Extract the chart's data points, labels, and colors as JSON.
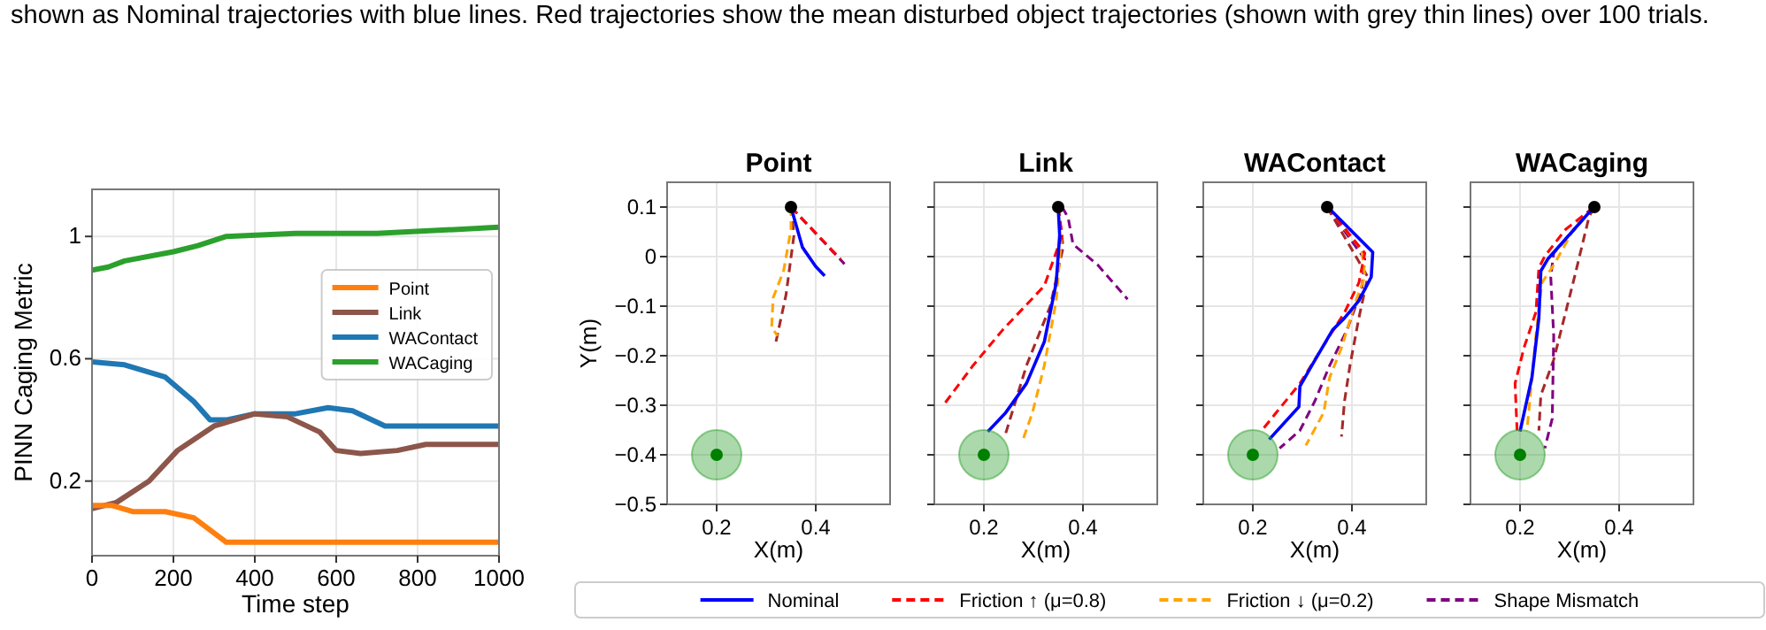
{
  "chart_data": [
    {
      "type": "line",
      "xlabel": "Time step",
      "ylabel": "PINN Caging Metric",
      "xlim": [
        0,
        1000
      ],
      "ylim": [
        -0.044,
        1.154
      ],
      "xticks": [
        0,
        200,
        400,
        600,
        800,
        1000
      ],
      "yticks": [
        0.2,
        0.6,
        1.0
      ],
      "grid": true,
      "legend": "right",
      "annotations": [
        "shown as Nominal trajectories with blue lines. Red trajectories show the mean disturbed object trajectories (shown with grey thin lines) over 100 trials."
      ],
      "series": [
        {
          "name": "Point",
          "color": "#ff7f0e",
          "x": [
            0,
            50,
            100,
            180,
            250,
            330,
            1000
          ],
          "values": [
            0.12,
            0.12,
            0.1,
            0.1,
            0.08,
            0.0,
            0.0
          ]
        },
        {
          "name": "Link",
          "color": "#8c564b",
          "x": [
            0,
            60,
            140,
            210,
            300,
            400,
            480,
            560,
            600,
            660,
            750,
            820,
            1000
          ],
          "values": [
            0.11,
            0.13,
            0.2,
            0.3,
            0.38,
            0.42,
            0.41,
            0.36,
            0.3,
            0.29,
            0.3,
            0.32,
            0.32
          ]
        },
        {
          "name": "WAContact",
          "color": "#1f77b4",
          "x": [
            0,
            80,
            180,
            250,
            290,
            330,
            400,
            500,
            580,
            640,
            720,
            1000
          ],
          "values": [
            0.59,
            0.58,
            0.54,
            0.46,
            0.4,
            0.4,
            0.42,
            0.42,
            0.44,
            0.43,
            0.38,
            0.38
          ]
        },
        {
          "name": "WACaging",
          "color": "#2ca02c",
          "x": [
            0,
            40,
            80,
            200,
            260,
            330,
            500,
            700,
            850,
            1000
          ],
          "values": [
            0.89,
            0.9,
            0.92,
            0.95,
            0.97,
            1.0,
            1.01,
            1.01,
            1.02,
            1.03
          ]
        }
      ]
    },
    {
      "type": "line",
      "title": "Point",
      "xlabel": "X(m)",
      "ylabel": "Y(m)",
      "xlim": [
        0.1,
        0.55
      ],
      "ylim": [
        -0.5,
        0.15
      ],
      "xticks": [
        0.2,
        0.4
      ],
      "yticks": [
        0.1,
        0.0,
        -0.1,
        -0.2,
        -0.3,
        -0.4,
        -0.5
      ],
      "grid": true,
      "legend": "bottom",
      "series": [
        {
          "name": "Nominal",
          "color": "#0000ff",
          "line_style": "solid",
          "x": [
            0.35,
            0.373,
            0.4,
            0.418
          ],
          "values": [
            0.1,
            0.019,
            -0.02,
            -0.039
          ]
        },
        {
          "name": "Friction ↑ (μ=0.8)",
          "color": "#ff0000",
          "line_style": "dashed",
          "x": [
            0.35,
            0.45
          ],
          "values": [
            0.1,
            -0.005
          ]
        },
        {
          "name": "Friction ↓ (μ=0.2)",
          "color": "#ffa500",
          "line_style": "dashed",
          "x": [
            0.35,
            0.35,
            0.335,
            0.314,
            0.311,
            0.323
          ],
          "values": [
            0.1,
            0.055,
            -0.029,
            -0.083,
            -0.143,
            -0.16
          ]
        },
        {
          "name": "Shape Mismatch",
          "color": "#800080",
          "line_style": "dashed",
          "x": [
            0.35,
            0.458
          ],
          "values": [
            0.1,
            -0.015
          ]
        },
        {
          "color": "#a52a2a",
          "line_style": "dashed",
          "x": [
            0.35,
            0.356,
            0.34,
            0.319
          ],
          "values": [
            0.1,
            0.043,
            -0.077,
            -0.175
          ]
        },
        {
          "type": "bubble",
          "color": "#2ca02c",
          "x": [
            0.2
          ],
          "values": [
            -0.4
          ],
          "sizes": [
            1
          ]
        },
        {
          "type": "scatter",
          "color": "#008000",
          "x": [
            0.2
          ],
          "values": [
            -0.4
          ]
        },
        {
          "type": "scatter",
          "color": "#000000",
          "x": [
            0.35
          ],
          "values": [
            0.1
          ]
        }
      ]
    },
    {
      "type": "line",
      "title": "Link",
      "xlabel": "X(m)",
      "xlim": [
        0.1,
        0.55
      ],
      "ylim": [
        -0.5,
        0.15
      ],
      "xticks": [
        0.2,
        0.4
      ],
      "yticks": [
        0.1,
        0.0,
        -0.1,
        -0.2,
        -0.3,
        -0.4,
        -0.5
      ],
      "grid": true,
      "tick_labels": "x",
      "series": [
        {
          "color": "#0000ff",
          "line_style": "solid",
          "x": [
            0.35,
            0.353,
            0.346,
            0.322,
            0.286,
            0.244,
            0.208
          ],
          "values": [
            0.1,
            0.043,
            -0.053,
            -0.172,
            -0.256,
            -0.315,
            -0.353
          ]
        },
        {
          "color": "#ff0000",
          "line_style": "dashed",
          "x": [
            0.35,
            0.358,
            0.322,
            0.238,
            0.178,
            0.122
          ],
          "values": [
            0.1,
            0.043,
            -0.059,
            -0.148,
            -0.22,
            -0.295
          ]
        },
        {
          "color": "#ffa500",
          "line_style": "dashed",
          "x": [
            0.35,
            0.356,
            0.346,
            0.322,
            0.298,
            0.277
          ],
          "values": [
            0.1,
            0.031,
            -0.089,
            -0.22,
            -0.315,
            -0.375
          ]
        },
        {
          "color": "#800080",
          "line_style": "dashed",
          "x": [
            0.358,
            0.37,
            0.38,
            0.43,
            0.49
          ],
          "values": [
            0.1,
            0.079,
            0.025,
            -0.017,
            -0.086
          ]
        },
        {
          "color": "#a52a2a",
          "line_style": "dashed",
          "x": [
            0.35,
            0.36,
            0.334,
            0.286,
            0.244
          ],
          "values": [
            0.1,
            0.019,
            -0.1,
            -0.22,
            -0.357
          ]
        },
        {
          "type": "bubble",
          "color": "#2ca02c",
          "x": [
            0.2
          ],
          "values": [
            -0.4
          ],
          "sizes": [
            1
          ]
        },
        {
          "type": "scatter",
          "color": "#008000",
          "x": [
            0.2
          ],
          "values": [
            -0.4
          ]
        },
        {
          "type": "scatter",
          "color": "#000000",
          "x": [
            0.35
          ],
          "values": [
            0.1
          ]
        }
      ]
    },
    {
      "type": "line",
      "title": "WAContact",
      "xlabel": "X(m)",
      "xlim": [
        0.1,
        0.55
      ],
      "ylim": [
        -0.5,
        0.15
      ],
      "xticks": [
        0.2,
        0.4
      ],
      "yticks": [
        0.1,
        0.0,
        -0.1,
        -0.2,
        -0.3,
        -0.4,
        -0.5
      ],
      "grid": true,
      "tick_labels": "x",
      "series": [
        {
          "color": "#0000ff",
          "line_style": "solid",
          "x": [
            0.351,
            0.442,
            0.439,
            0.414,
            0.385,
            0.361,
            0.319,
            0.295,
            0.293,
            0.233
          ],
          "values": [
            0.1,
            0.009,
            -0.041,
            -0.089,
            -0.124,
            -0.148,
            -0.22,
            -0.262,
            -0.303,
            -0.369
          ]
        },
        {
          "color": "#ff0000",
          "line_style": "dashed",
          "x": [
            0.35,
            0.426,
            0.414,
            0.385,
            0.355,
            0.295,
            0.218
          ],
          "values": [
            0.1,
            0.007,
            -0.053,
            -0.113,
            -0.16,
            -0.256,
            -0.351
          ]
        },
        {
          "color": "#ffa500",
          "line_style": "dashed",
          "x": [
            0.35,
            0.42,
            0.426,
            0.408,
            0.379,
            0.355,
            0.343,
            0.307
          ],
          "values": [
            0.1,
            0.013,
            -0.041,
            -0.089,
            -0.184,
            -0.244,
            -0.315,
            -0.381
          ]
        },
        {
          "color": "#800080",
          "line_style": "dashed",
          "x": [
            0.35,
            0.426,
            0.42,
            0.39,
            0.355,
            0.325,
            0.295,
            0.254
          ],
          "values": [
            0.1,
            -0.005,
            -0.065,
            -0.148,
            -0.22,
            -0.292,
            -0.351,
            -0.387
          ]
        },
        {
          "color": "#a52a2a",
          "line_style": "dashed",
          "x": [
            0.35,
            0.432,
            0.414,
            0.396,
            0.385,
            0.379
          ],
          "values": [
            0.1,
            -0.041,
            -0.124,
            -0.22,
            -0.292,
            -0.363
          ]
        },
        {
          "type": "bubble",
          "color": "#2ca02c",
          "x": [
            0.2
          ],
          "values": [
            -0.4
          ],
          "sizes": [
            1
          ]
        },
        {
          "type": "scatter",
          "color": "#008000",
          "x": [
            0.2
          ],
          "values": [
            -0.4
          ]
        },
        {
          "type": "scatter",
          "color": "#000000",
          "x": [
            0.35
          ],
          "values": [
            0.1
          ]
        }
      ]
    },
    {
      "type": "line",
      "title": "WACaging",
      "xlabel": "X(m)",
      "xlim": [
        0.1,
        0.55
      ],
      "ylim": [
        -0.5,
        0.15
      ],
      "xticks": [
        0.2,
        0.4
      ],
      "yticks": [
        0.1,
        0.0,
        -0.1,
        -0.2,
        -0.3,
        -0.4,
        -0.5
      ],
      "grid": true,
      "tick_labels": "x",
      "series": [
        {
          "color": "#0000ff",
          "line_style": "solid",
          "x": [
            0.349,
            0.256,
            0.242,
            0.238,
            0.224,
            0.2
          ],
          "values": [
            0.1,
            -0.005,
            -0.029,
            -0.124,
            -0.244,
            -0.353
          ]
        },
        {
          "color": "#ff0000",
          "line_style": "dashed",
          "x": [
            0.349,
            0.292,
            0.25,
            0.238,
            0.232,
            0.208,
            0.19,
            0.194
          ],
          "values": [
            0.1,
            0.055,
            0.001,
            -0.023,
            -0.112,
            -0.184,
            -0.256,
            -0.351
          ]
        },
        {
          "color": "#ffa500",
          "line_style": "dashed",
          "x": [
            0.349,
            0.315,
            0.268,
            0.244,
            0.232,
            0.214
          ],
          "values": [
            0.1,
            0.067,
            -0.017,
            -0.053,
            -0.16,
            -0.351
          ]
        },
        {
          "color": "#800080",
          "line_style": "dashed",
          "x": [
            0.349,
            0.268,
            0.262,
            0.268,
            0.265,
            0.25
          ],
          "values": [
            0.1,
            0.007,
            -0.041,
            -0.16,
            -0.327,
            -0.387
          ]
        },
        {
          "color": "#a52a2a",
          "line_style": "dashed",
          "x": [
            0.349,
            0.339,
            0.31,
            0.268,
            0.242,
            0.238
          ],
          "values": [
            0.1,
            0.079,
            -0.041,
            -0.208,
            -0.28,
            -0.351
          ]
        },
        {
          "type": "bubble",
          "color": "#2ca02c",
          "x": [
            0.2
          ],
          "values": [
            -0.4
          ],
          "sizes": [
            1
          ]
        },
        {
          "type": "scatter",
          "color": "#008000",
          "x": [
            0.2
          ],
          "values": [
            -0.4
          ]
        },
        {
          "type": "scatter",
          "color": "#000000",
          "x": [
            0.35
          ],
          "values": [
            0.1
          ]
        }
      ]
    }
  ]
}
